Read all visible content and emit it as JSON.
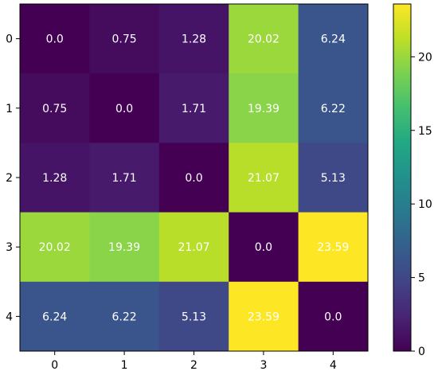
{
  "chart_data": {
    "type": "heatmap",
    "title": "",
    "xlabel": "",
    "ylabel": "",
    "x_categories": [
      "0",
      "1",
      "2",
      "3",
      "4"
    ],
    "y_categories": [
      "0",
      "1",
      "2",
      "3",
      "4"
    ],
    "values": [
      [
        0.0,
        0.75,
        1.28,
        20.02,
        6.24
      ],
      [
        0.75,
        0.0,
        1.71,
        19.39,
        6.22
      ],
      [
        1.28,
        1.71,
        0.0,
        21.07,
        5.13
      ],
      [
        20.02,
        19.39,
        21.07,
        0.0,
        23.59
      ],
      [
        6.24,
        6.22,
        5.13,
        23.59,
        0.0
      ]
    ],
    "cell_labels": [
      [
        "0.0",
        "0.75",
        "1.28",
        "20.02",
        "6.24"
      ],
      [
        "0.75",
        "0.0",
        "1.71",
        "19.39",
        "6.22"
      ],
      [
        "1.28",
        "1.71",
        "0.0",
        "21.07",
        "5.13"
      ],
      [
        "20.02",
        "19.39",
        "21.07",
        "0.0",
        "23.59"
      ],
      [
        "6.24",
        "6.22",
        "5.13",
        "23.59",
        "0.0"
      ]
    ],
    "colormap": "viridis",
    "colorbar": {
      "range": [
        0,
        23.59
      ],
      "ticks": [
        0,
        5,
        10,
        15,
        20
      ],
      "tick_labels": [
        "0",
        "5",
        "10",
        "15",
        "20"
      ]
    },
    "annotation_color": "#ffffff",
    "grid": false,
    "legend": "colorbar-right"
  }
}
